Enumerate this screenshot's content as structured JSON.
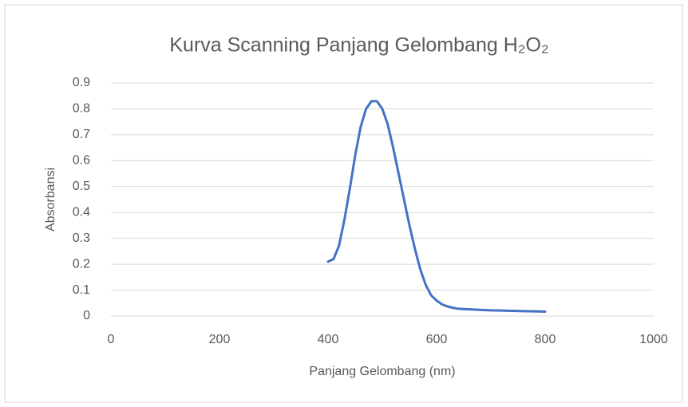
{
  "chart_data": {
    "type": "line",
    "title": "Kurva Scanning Panjang Gelombang H₂O₂",
    "x_label": "Panjang Gelombang (nm)",
    "y_label": "Absorbansi",
    "x": [
      400,
      410,
      420,
      430,
      440,
      450,
      460,
      470,
      480,
      490,
      500,
      510,
      520,
      530,
      540,
      550,
      560,
      570,
      580,
      590,
      600,
      610,
      620,
      630,
      640,
      660,
      680,
      700,
      720,
      740,
      760,
      780,
      800
    ],
    "series": [
      {
        "name": "Absorbansi",
        "color": "#4472c4",
        "values": [
          0.21,
          0.22,
          0.27,
          0.37,
          0.49,
          0.62,
          0.73,
          0.8,
          0.83,
          0.83,
          0.8,
          0.74,
          0.65,
          0.55,
          0.45,
          0.35,
          0.26,
          0.18,
          0.12,
          0.08,
          0.06,
          0.045,
          0.037,
          0.032,
          0.028,
          0.026,
          0.024,
          0.022,
          0.021,
          0.02,
          0.019,
          0.018,
          0.017
        ]
      }
    ],
    "xlim": [
      0,
      1000
    ],
    "xticks": [
      0,
      200,
      400,
      600,
      800,
      1000
    ],
    "ylim": [
      0,
      0.9
    ],
    "yticks": [
      0,
      0.1,
      0.2,
      0.3,
      0.4,
      0.5,
      0.6,
      0.7,
      0.8,
      0.9
    ],
    "grid": true
  }
}
